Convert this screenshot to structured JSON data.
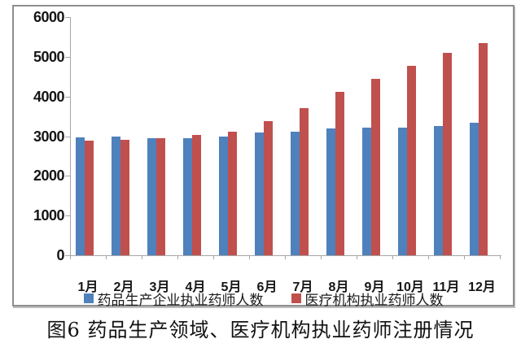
{
  "caption": "图6 药品生产领域、医疗机构执业药师注册情况",
  "colors": {
    "series_blue": "#4f81bd",
    "series_red": "#c0504d",
    "axis": "#a6a6a6",
    "frame_border": "#8f8f8f",
    "text": "#151515"
  },
  "chart_data": {
    "type": "bar",
    "title": "图6 药品生产领域、医疗机构执业药师注册情况",
    "xlabel": "",
    "ylabel": "",
    "ylim": [
      0,
      6000
    ],
    "yticks": [
      0,
      1000,
      2000,
      3000,
      4000,
      5000,
      6000
    ],
    "grid": false,
    "legend_position": "bottom",
    "categories": [
      "1月",
      "2月",
      "3月",
      "4月",
      "5月",
      "6月",
      "7月",
      "8月",
      "9月",
      "10月",
      "11月",
      "12月"
    ],
    "series": [
      {
        "name": "药品生产企业执业药师人数",
        "color": "#4f81bd",
        "values": [
          2960,
          2980,
          2940,
          2950,
          2980,
          3100,
          3120,
          3190,
          3220,
          3210,
          3250,
          3340
        ]
      },
      {
        "name": "医疗机构执业药师人数",
        "color": "#c0504d",
        "values": [
          2880,
          2900,
          2940,
          3030,
          3110,
          3380,
          3710,
          4120,
          4440,
          4770,
          5100,
          5340
        ]
      }
    ]
  }
}
